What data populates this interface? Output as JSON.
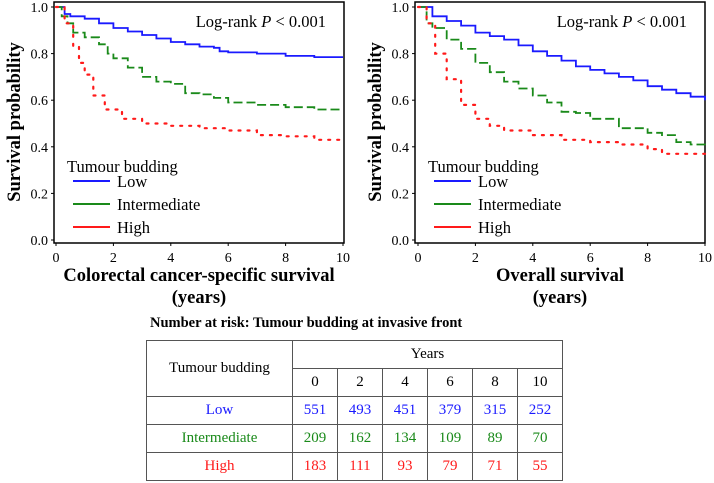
{
  "chart_data": [
    {
      "type": "line",
      "title": "",
      "annotation": {
        "text": "Log-rank ",
        "p": "P",
        "rest": " < 0.001"
      },
      "xlabel": "Colorectal cancer-specific survival",
      "xlabel2": "(years)",
      "ylabel": "Survival probability",
      "xlim": [
        0,
        10
      ],
      "ylim": [
        0,
        1
      ],
      "xticks": [
        "0",
        "2",
        "4",
        "6",
        "8",
        "10"
      ],
      "yticks": [
        "0.0",
        "0.2",
        "0.4",
        "0.6",
        "0.8",
        "1.0"
      ],
      "legend_title": "Tumour budding",
      "legend_position": "bottom-left",
      "series": [
        {
          "name": "Low",
          "color": "#1a1aff",
          "style": "solid",
          "x": [
            0,
            0.3,
            0.5,
            1,
            1.5,
            2,
            2.5,
            3,
            3.5,
            4,
            4.5,
            5,
            5.5,
            5.7,
            6,
            7,
            8,
            9,
            10
          ],
          "y": [
            1.0,
            0.97,
            0.96,
            0.95,
            0.93,
            0.91,
            0.895,
            0.88,
            0.865,
            0.85,
            0.84,
            0.83,
            0.825,
            0.81,
            0.805,
            0.8,
            0.79,
            0.785,
            0.785
          ]
        },
        {
          "name": "Intermediate",
          "color": "#1a8a1a",
          "style": "dashed",
          "x": [
            0,
            0.2,
            0.4,
            0.6,
            1,
            1.5,
            1.8,
            2,
            2.5,
            3,
            3.5,
            4,
            4.5,
            5,
            5.5,
            6,
            7,
            8,
            9,
            10
          ],
          "y": [
            1.0,
            0.96,
            0.93,
            0.89,
            0.87,
            0.84,
            0.8,
            0.78,
            0.74,
            0.7,
            0.68,
            0.67,
            0.63,
            0.625,
            0.61,
            0.59,
            0.58,
            0.57,
            0.56,
            0.56
          ]
        },
        {
          "name": "High",
          "color": "#ff1a1a",
          "style": "dotted",
          "x": [
            0,
            0.3,
            0.6,
            0.8,
            1,
            1.3,
            1.7,
            2.3,
            3,
            4,
            5,
            6,
            7,
            8,
            9,
            10
          ],
          "y": [
            1.0,
            0.93,
            0.83,
            0.76,
            0.71,
            0.62,
            0.56,
            0.52,
            0.5,
            0.49,
            0.48,
            0.47,
            0.45,
            0.445,
            0.43,
            0.42
          ]
        }
      ]
    },
    {
      "type": "line",
      "title": "",
      "annotation": {
        "text": "Log-rank ",
        "p": "P",
        "rest": " < 0.001"
      },
      "xlabel": "Overall survival",
      "xlabel2": "(years)",
      "ylabel": "Survival probability",
      "xlim": [
        0,
        10
      ],
      "ylim": [
        0,
        1
      ],
      "xticks": [
        "0",
        "2",
        "4",
        "6",
        "8",
        "10"
      ],
      "yticks": [
        "0.0",
        "0.2",
        "0.4",
        "0.6",
        "0.8",
        "1.0"
      ],
      "legend_title": "Tumour budding",
      "legend_position": "bottom-left",
      "series": [
        {
          "name": "Low",
          "color": "#1a1aff",
          "style": "solid",
          "x": [
            0,
            0.5,
            1,
            1.5,
            2,
            2.5,
            3,
            3.5,
            4,
            4.5,
            5,
            5.5,
            6,
            6.5,
            7,
            7.5,
            8,
            8.5,
            9,
            9.5,
            10
          ],
          "y": [
            1.0,
            0.96,
            0.94,
            0.92,
            0.89,
            0.875,
            0.86,
            0.835,
            0.81,
            0.79,
            0.77,
            0.745,
            0.73,
            0.715,
            0.7,
            0.685,
            0.66,
            0.645,
            0.63,
            0.615,
            0.6
          ]
        },
        {
          "name": "Intermediate",
          "color": "#1a8a1a",
          "style": "dashed",
          "x": [
            0,
            0.3,
            0.5,
            1,
            1.5,
            2,
            2.5,
            3,
            3.5,
            4,
            4.5,
            5,
            5.5,
            6,
            7,
            8,
            8.5,
            9,
            9.5,
            10
          ],
          "y": [
            1.0,
            0.93,
            0.91,
            0.86,
            0.82,
            0.76,
            0.72,
            0.68,
            0.65,
            0.62,
            0.59,
            0.55,
            0.545,
            0.52,
            0.48,
            0.46,
            0.45,
            0.42,
            0.41,
            0.4
          ]
        },
        {
          "name": "High",
          "color": "#ff1a1a",
          "style": "dotted",
          "x": [
            0,
            0.3,
            0.6,
            1,
            1.5,
            2,
            2.5,
            3,
            4,
            5,
            6,
            7,
            8,
            8.5,
            10
          ],
          "y": [
            1.0,
            0.93,
            0.8,
            0.69,
            0.58,
            0.52,
            0.49,
            0.47,
            0.45,
            0.43,
            0.42,
            0.41,
            0.39,
            0.37,
            0.37
          ]
        }
      ]
    }
  ],
  "risk_table": {
    "title": "Number at risk: Tumour budding at invasive front",
    "row_header": "Tumour budding",
    "col_group": "Years",
    "years": [
      "0",
      "2",
      "4",
      "6",
      "8",
      "10"
    ],
    "rows": [
      {
        "label": "Low",
        "values": [
          "551",
          "493",
          "451",
          "379",
          "315",
          "252"
        ]
      },
      {
        "label": "Intermediate",
        "values": [
          "209",
          "162",
          "134",
          "109",
          "89",
          "70"
        ]
      },
      {
        "label": "High",
        "values": [
          "183",
          "111",
          "93",
          "79",
          "71",
          "55"
        ]
      }
    ]
  }
}
